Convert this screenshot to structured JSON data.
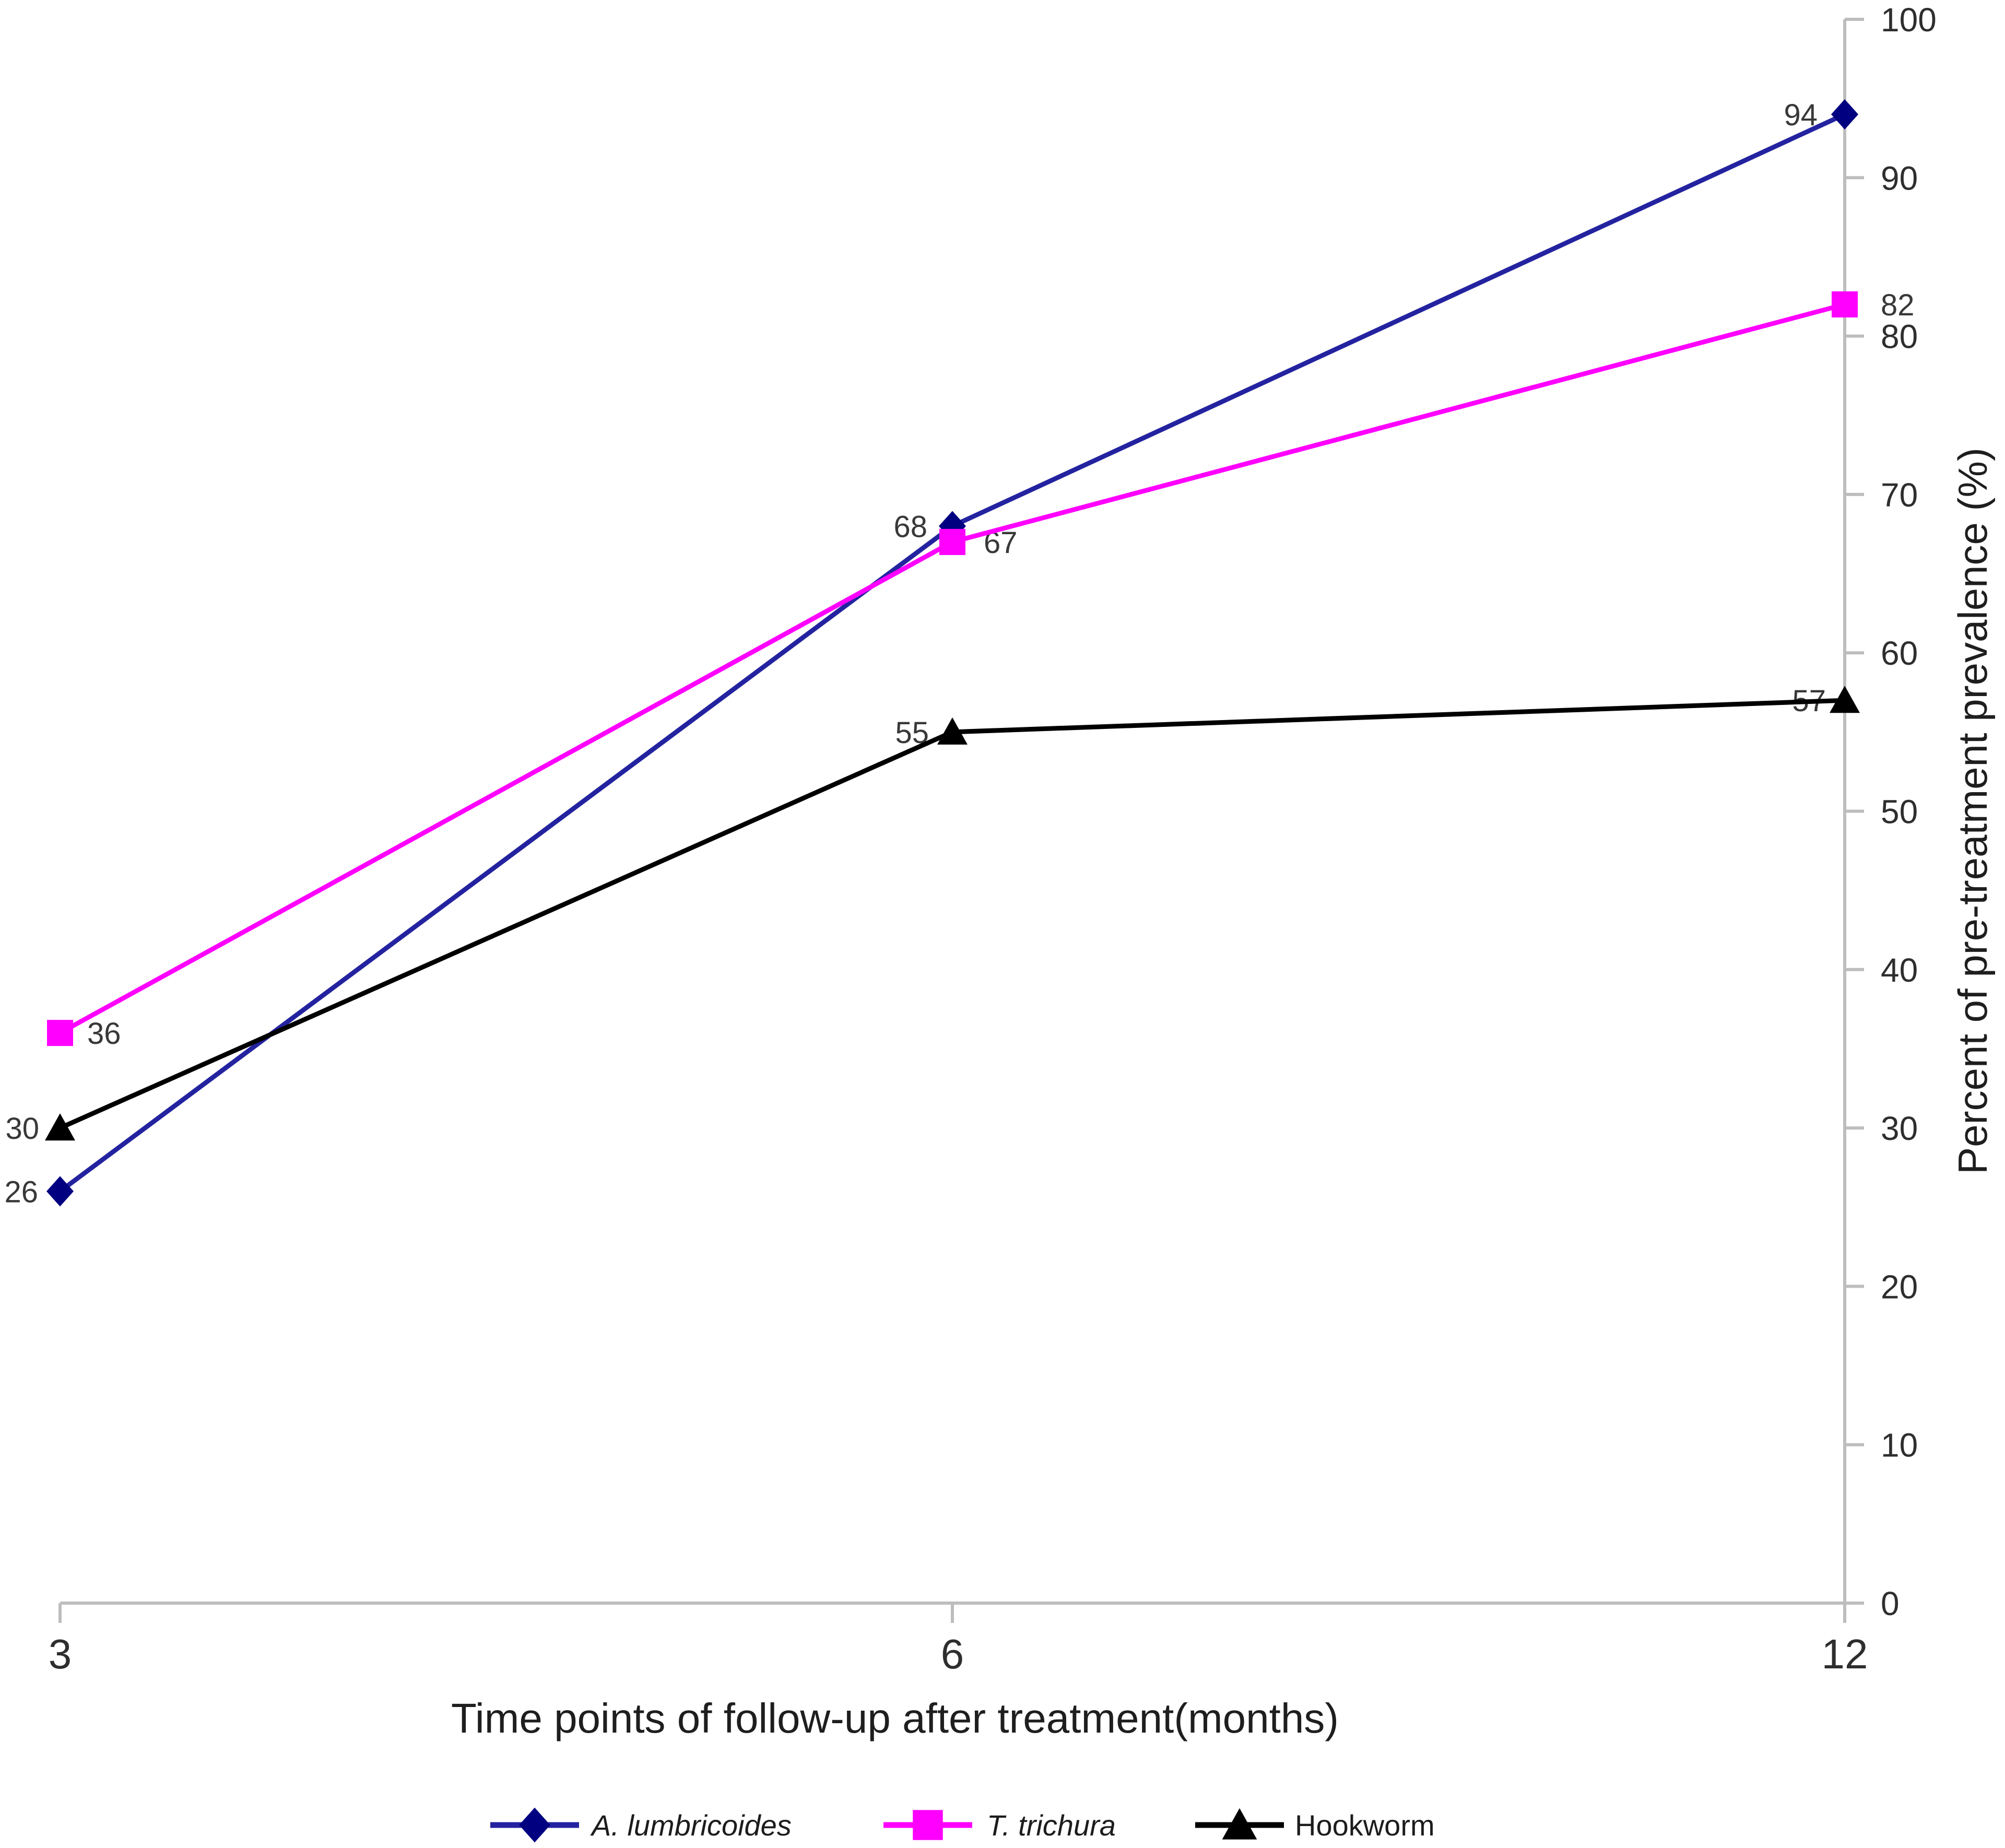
{
  "chart_data": {
    "type": "line",
    "xlabel": "Time points of follow-up after treatment(months)",
    "ylabel": "Percent of pre-treatment prevalence (%)",
    "x_categories": [
      "3",
      "6",
      "12"
    ],
    "ylim": [
      0,
      100
    ],
    "yticks": [
      0,
      10,
      20,
      30,
      40,
      50,
      60,
      70,
      80,
      90,
      100
    ],
    "grid": false,
    "legend_position": "bottom-center",
    "axis_color": "#bdbdbd",
    "tick_label_color": "#2e2e2e",
    "data_label_color": "#383838",
    "series": [
      {
        "name": "A. lumbricoides",
        "italic": true,
        "marker": "diamond",
        "color": "#000080",
        "line_color": "#2323a0",
        "values": [
          26,
          68,
          94
        ]
      },
      {
        "name": "T. trichura",
        "italic": true,
        "marker": "square",
        "color": "#ff00ff",
        "line_color": "#ff00ff",
        "values": [
          36,
          67,
          82
        ]
      },
      {
        "name": "Hookworm",
        "italic": false,
        "marker": "triangle",
        "color": "#000000",
        "line_color": "#000000",
        "values": [
          30,
          55,
          57
        ]
      }
    ]
  }
}
